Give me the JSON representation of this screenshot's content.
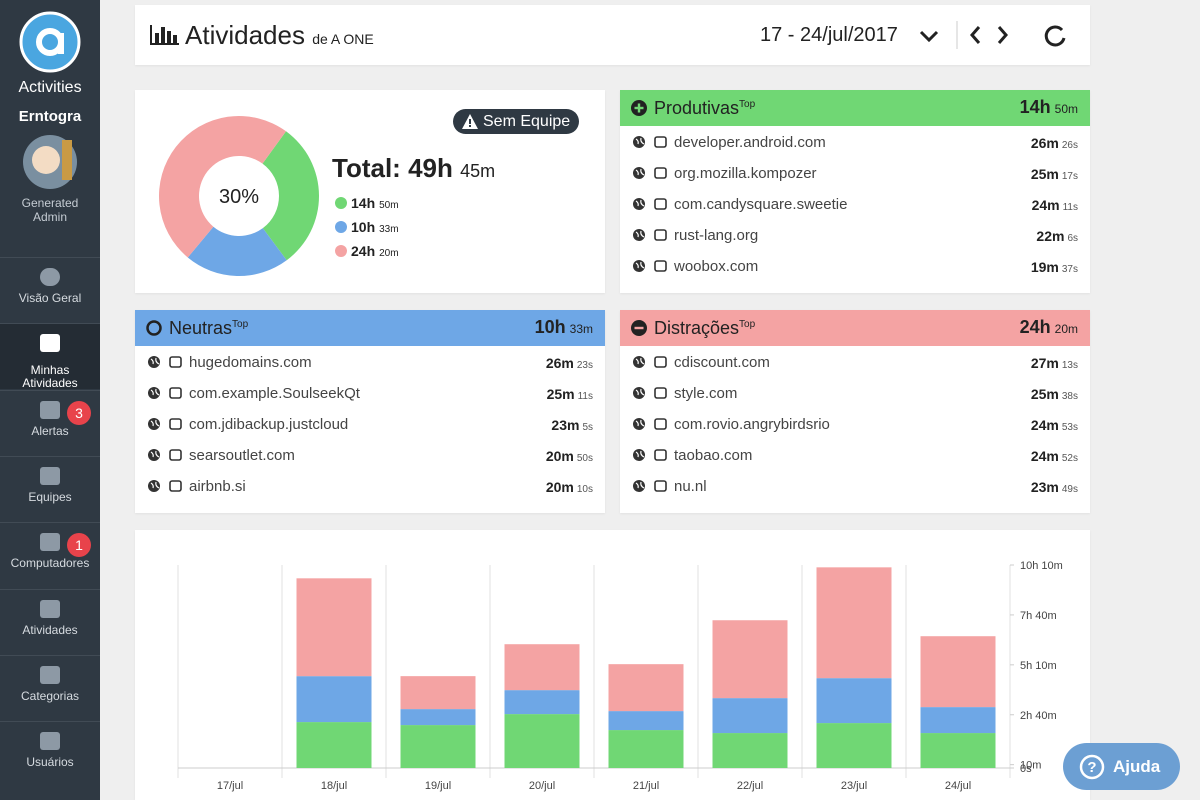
{
  "sidebar": {
    "app": "Activities",
    "user": "Erntogra",
    "role": "Generated Admin",
    "nav": [
      {
        "label": "Visão Geral"
      },
      {
        "label": "Minhas Atividades"
      },
      {
        "label": "Alertas",
        "badge": "3"
      },
      {
        "label": "Equipes"
      },
      {
        "label": "Computadores",
        "badge": "1"
      },
      {
        "label": "Atividades"
      },
      {
        "label": "Categorias"
      },
      {
        "label": "Usuários"
      }
    ]
  },
  "header": {
    "title": "Atividades",
    "subtitle": "de A ONE",
    "date": "17 - 24/jul/2017"
  },
  "summary": {
    "badge": "Sem Equipe",
    "total_label": "Total:",
    "total_h": "49h",
    "total_m": "45m"
  },
  "panels": [
    {
      "title": "Produtivas",
      "sup": "Top",
      "rows": [
        {
          "name": "developer.android.com",
          "t": "26m",
          "s": "26s"
        },
        {
          "name": "org.mozilla.kompozer",
          "t": "25m",
          "s": "17s"
        },
        {
          "name": "com.candysquare.sweetie",
          "t": "24m",
          "s": "11s"
        },
        {
          "name": "rust-lang.org",
          "t": "22m",
          "s": "6s"
        },
        {
          "name": "woobox.com",
          "t": "19m",
          "s": "37s"
        }
      ]
    },
    {
      "title": "Neutras",
      "sup": "Top",
      "rows": [
        {
          "name": "hugedomains.com",
          "t": "26m",
          "s": "23s"
        },
        {
          "name": "com.example.SoulseekQt",
          "t": "25m",
          "s": "11s"
        },
        {
          "name": "com.jdibackup.justcloud",
          "t": "23m",
          "s": "5s"
        },
        {
          "name": "searsoutlet.com",
          "t": "20m",
          "s": "50s"
        },
        {
          "name": "airbnb.si",
          "t": "20m",
          "s": "10s"
        }
      ]
    },
    {
      "title": "Distrações",
      "sup": "Top",
      "rows": [
        {
          "name": "cdiscount.com",
          "t": "27m",
          "s": "13s"
        },
        {
          "name": "style.com",
          "t": "25m",
          "s": "38s"
        },
        {
          "name": "com.rovio.angrybirdsrio",
          "t": "24m",
          "s": "53s"
        },
        {
          "name": "taobao.com",
          "t": "24m",
          "s": "52s"
        },
        {
          "name": "nu.nl",
          "t": "23m",
          "s": "49s"
        }
      ]
    }
  ],
  "chart_data": [
    {
      "type": "pie",
      "center_label": "30%",
      "values": [
        890,
        633,
        1460
      ],
      "value_labels": [
        [
          "14h",
          "50m"
        ],
        [
          "10h",
          "33m"
        ],
        [
          "24h",
          "20m"
        ]
      ],
      "colors": [
        "#70d774",
        "#6ea7e6",
        "#f4a3a3"
      ]
    },
    {
      "type": "bar",
      "stacked": true,
      "categories": [
        "17/jul",
        "18/jul",
        "19/jul",
        "20/jul",
        "21/jul",
        "22/jul",
        "23/jul",
        "24/jul"
      ],
      "series": [
        {
          "color": "#70d774",
          "values": [
            0,
            138,
            129,
            162,
            114,
            105,
            135,
            105
          ]
        },
        {
          "color": "#6ea7e6",
          "values": [
            0,
            138,
            48,
            72,
            57,
            105,
            135,
            78
          ]
        },
        {
          "color": "#f4a3a3",
          "values": [
            0,
            294,
            99,
            138,
            141,
            234,
            333,
            213
          ]
        }
      ],
      "ylim": [
        0,
        610
      ],
      "yticks": [
        {
          "value": 0,
          "label": "0s"
        },
        {
          "value": 10,
          "label": "10m"
        },
        {
          "value": 160,
          "label": "2h 40m"
        },
        {
          "value": 310,
          "label": "5h 10m"
        },
        {
          "value": 460,
          "label": "7h 40m"
        },
        {
          "value": 610,
          "label": "10h 10m"
        }
      ],
      "grid": false
    }
  ],
  "help": "Ajuda"
}
